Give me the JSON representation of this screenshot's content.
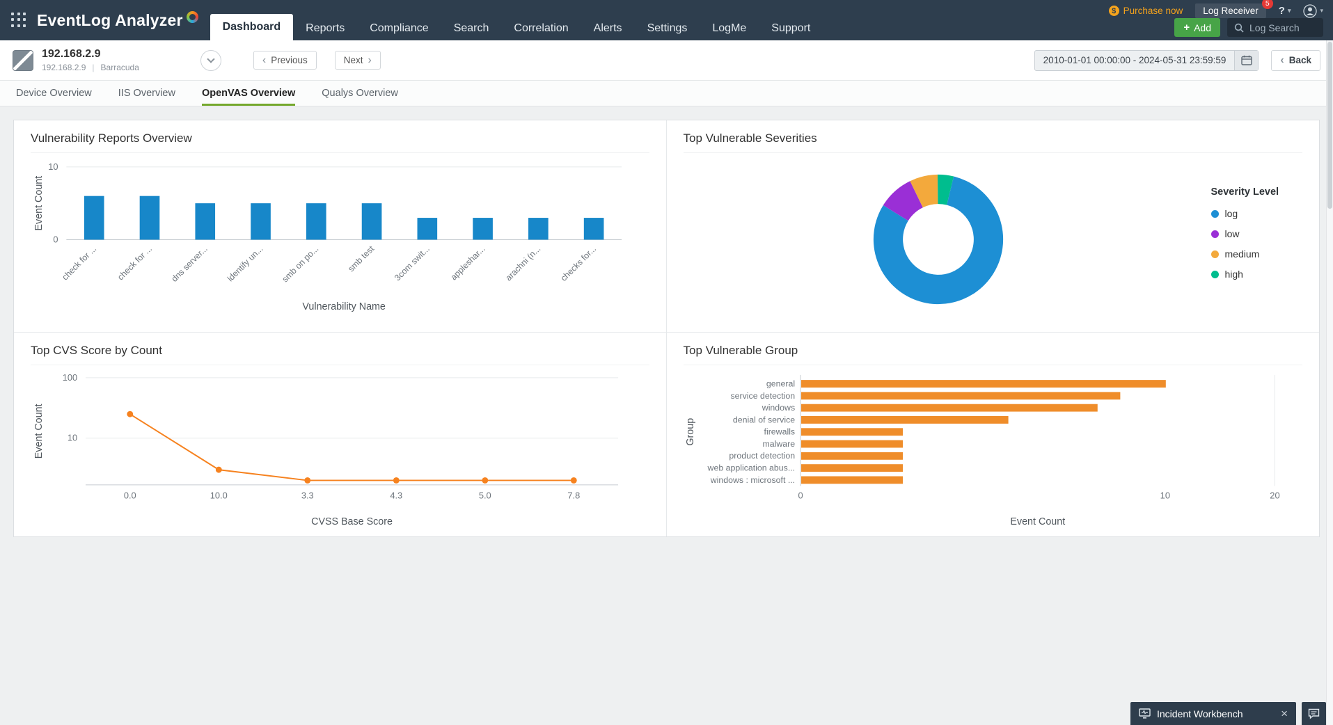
{
  "header": {
    "logo_text": "EventLog Analyzer",
    "nav": [
      {
        "label": "Dashboard",
        "active": true
      },
      {
        "label": "Reports"
      },
      {
        "label": "Compliance"
      },
      {
        "label": "Search"
      },
      {
        "label": "Correlation"
      },
      {
        "label": "Alerts"
      },
      {
        "label": "Settings"
      },
      {
        "label": "LogMe"
      },
      {
        "label": "Support"
      }
    ],
    "purchase_now": "Purchase now",
    "log_receiver": "Log Receiver",
    "notification_count": "5",
    "help_label": "?",
    "add_label": "Add",
    "log_search": "Log Search"
  },
  "toolbar": {
    "device_name": "192.168.2.9",
    "device_ip": "192.168.2.9",
    "device_type": "Barracuda",
    "previous_label": "Previous",
    "next_label": "Next",
    "date_range": "2010-01-01 00:00:00 - 2024-05-31 23:59:59",
    "back_label": "Back"
  },
  "view_tabs": [
    {
      "label": "Device Overview"
    },
    {
      "label": "IIS Overview"
    },
    {
      "label": "OpenVAS Overview",
      "active": true
    },
    {
      "label": "Qualys Overview"
    }
  ],
  "chart_data": [
    {
      "type": "bar",
      "title": "Vulnerability Reports Overview",
      "categories": [
        "check for ...",
        "check for ...",
        "dns server...",
        "identify un...",
        "smb on po...",
        "smb test",
        "3com swit...",
        "appleshar...",
        "arachni (n...",
        "checks for..."
      ],
      "values": [
        6,
        6,
        5,
        5,
        5,
        5,
        3,
        3,
        3,
        3
      ],
      "xlabel": "Vulnerability Name",
      "ylabel": "Event Count",
      "ylim": [
        0,
        10
      ],
      "yticks": [
        0,
        10
      ],
      "color": "#1787c9"
    },
    {
      "type": "pie",
      "donut": true,
      "title": "Top Vulnerable Severities",
      "legend_title": "Severity Level",
      "legend_position": "right",
      "series": [
        {
          "name": "log",
          "value": 80,
          "color": "#1d8fd4"
        },
        {
          "name": "low",
          "value": 9,
          "color": "#9a2fd6"
        },
        {
          "name": "medium",
          "value": 7,
          "color": "#f3a93c"
        },
        {
          "name": "high",
          "value": 4,
          "color": "#00bd8e"
        }
      ]
    },
    {
      "type": "line",
      "title": "Top CVS Score by Count",
      "x": [
        "0.0",
        "10.0",
        "3.3",
        "4.3",
        "5.0",
        "7.8"
      ],
      "values": [
        25,
        3,
        2,
        2,
        2,
        2
      ],
      "xlabel": "CVSS Base Score",
      "ylabel": "Event Count",
      "yscale": "log",
      "yticks": [
        10,
        100
      ],
      "color": "#f6821f"
    },
    {
      "type": "hbar",
      "title": "Top Vulnerable Group",
      "categories": [
        "general",
        "service detection",
        "windows",
        "denial of service",
        "firewalls",
        "malware",
        "product detection",
        "web application abus...",
        "windows : microsoft ..."
      ],
      "values": [
        10,
        7.5,
        6.5,
        3.7,
        1.9,
        1.9,
        1.9,
        1.9,
        1.9
      ],
      "xlabel": "Event Count",
      "ylabel": "Group",
      "xscale": "log",
      "xticks": [
        0,
        10,
        20
      ],
      "color": "#ef8d2a"
    }
  ],
  "incident_workbench": {
    "label": "Incident Workbench"
  },
  "icons": {
    "caret_down": "▾",
    "chevron_left": "‹",
    "chevron_right": "›",
    "plus": "+",
    "close": "×",
    "separator": "|"
  },
  "colors": {
    "header_bg": "#2e3e4e",
    "add_button_green": "#47a447",
    "active_tab_underline": "#74a82c",
    "purchase_orange": "#f5a31c",
    "badge_red": "#e53935"
  }
}
